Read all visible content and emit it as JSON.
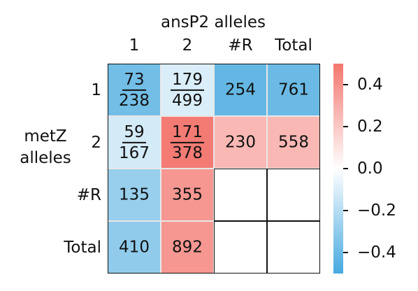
{
  "chart_data": {
    "type": "heatmap",
    "col_title": "ansP2 alleles",
    "row_title": [
      "metZ",
      "alleles"
    ],
    "columns": [
      "1",
      "2",
      "#R",
      "Total"
    ],
    "rows": [
      "1",
      "2",
      "#R",
      "Total"
    ],
    "cells": [
      [
        {
          "num": "73",
          "den": "238",
          "v": -0.38
        },
        {
          "num": "179",
          "den": "499",
          "v": -0.1
        },
        {
          "text": "254",
          "v": -0.42
        },
        {
          "text": "761",
          "v": -0.4
        }
      ],
      [
        {
          "num": "59",
          "den": "167",
          "v": -0.12
        },
        {
          "num": "171",
          "den": "378",
          "v": 0.48
        },
        {
          "text": "230",
          "v": 0.26
        },
        {
          "text": "558",
          "v": 0.26
        }
      ],
      [
        {
          "text": "135",
          "v": -0.28
        },
        {
          "text": "355",
          "v": 0.38
        },
        {
          "text": "",
          "v": null
        },
        {
          "text": "",
          "v": null
        }
      ],
      [
        {
          "text": "410",
          "v": -0.3
        },
        {
          "text": "892",
          "v": 0.38
        },
        {
          "text": "",
          "v": null
        },
        {
          "text": "",
          "v": null
        }
      ]
    ],
    "colorbar": {
      "min": -0.5,
      "max": 0.5,
      "ticks": [
        0.4,
        0.2,
        0.0,
        -0.2,
        -0.4
      ],
      "tick_labels": [
        "0.4",
        "0.2",
        "0.0",
        "−0.2",
        "−0.4"
      ],
      "colors": {
        "negative": "#46a9df",
        "zero": "#ffffff",
        "positive": "#f3766e"
      }
    }
  }
}
